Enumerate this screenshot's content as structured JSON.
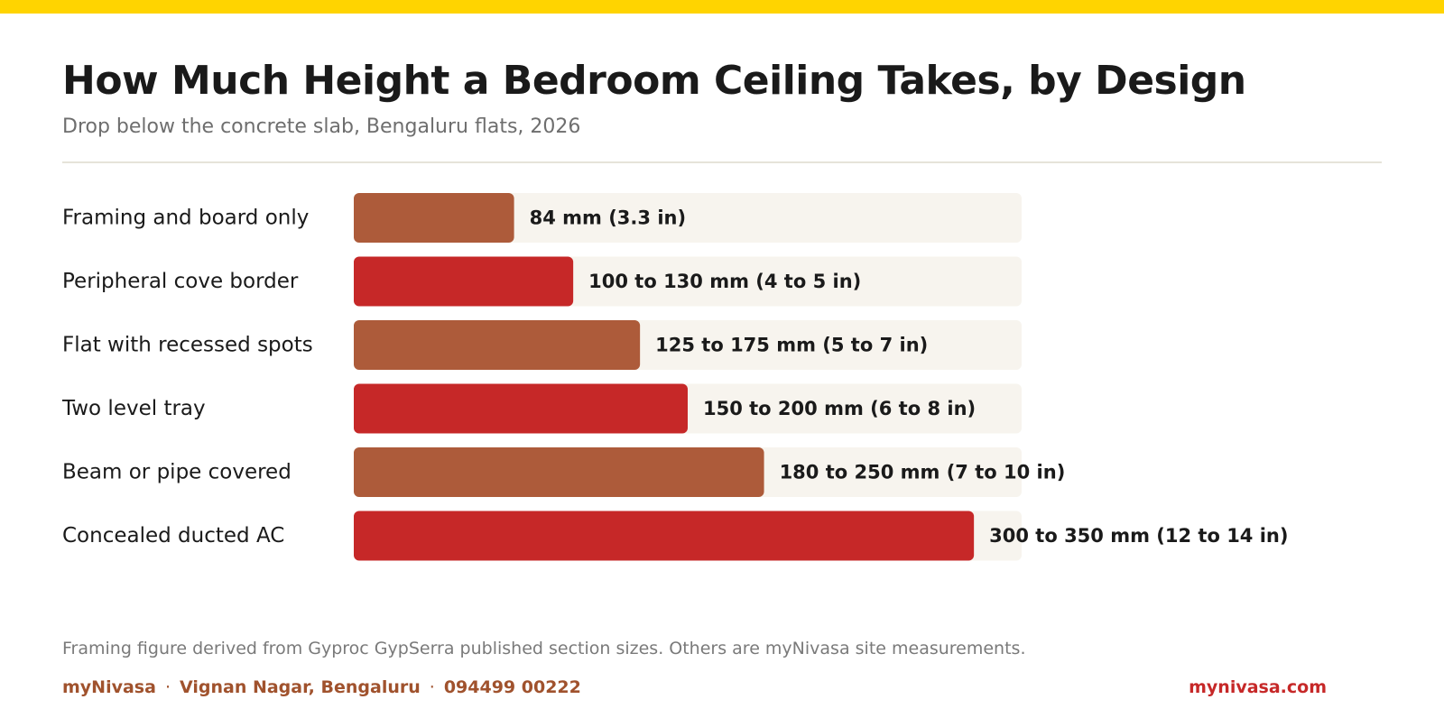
{
  "header": {
    "title": "How Much Height a Bedroom Ceiling Takes, by Design",
    "subtitle": "Drop below the concrete slab, Bengaluru flats, 2026"
  },
  "colors": {
    "top_bar": "#ffd400",
    "bar_brown": "#ad5b3a",
    "bar_red": "#c62828",
    "track": "#f7f4ee",
    "label_text": "#1a1a1a",
    "footer_accent": "#a0522d",
    "site_accent": "#c62828"
  },
  "chart_data": {
    "type": "bar",
    "orientation": "horizontal",
    "title": "How Much Height a Bedroom Ceiling Takes, by Design",
    "subtitle": "Drop below the concrete slab, Bengaluru flats, 2026",
    "xlim": [
      0,
      350
    ],
    "grid": false,
    "legend": "none",
    "categories": [
      "Framing and board only",
      "Peripheral cove border",
      "Flat with recessed spots",
      "Two level tray",
      "Beam or pipe covered",
      "Concealed ducted AC"
    ],
    "values": [
      84,
      115,
      150,
      175,
      215,
      325
    ],
    "value_labels": [
      "84 mm (3.3 in)",
      "100 to 130 mm (4 to 5 in)",
      "125 to 175 mm (5 to 7 in)",
      "150 to 200 mm (6 to 8 in)",
      "180 to 250 mm (7 to 10 in)",
      "300 to 350 mm (12 to 14 in)"
    ],
    "bar_colors": [
      "#ad5b3a",
      "#c62828",
      "#ad5b3a",
      "#c62828",
      "#ad5b3a",
      "#c62828"
    ]
  },
  "footnote": "Framing figure derived from Gyproc GypSerra published section sizes. Others are myNivasa site measurements.",
  "footer": {
    "brand": "myNivasa",
    "separator": "·",
    "location": "Vignan Nagar, Bengaluru",
    "phone": "094499 00222",
    "site": "mynivasa.com"
  }
}
